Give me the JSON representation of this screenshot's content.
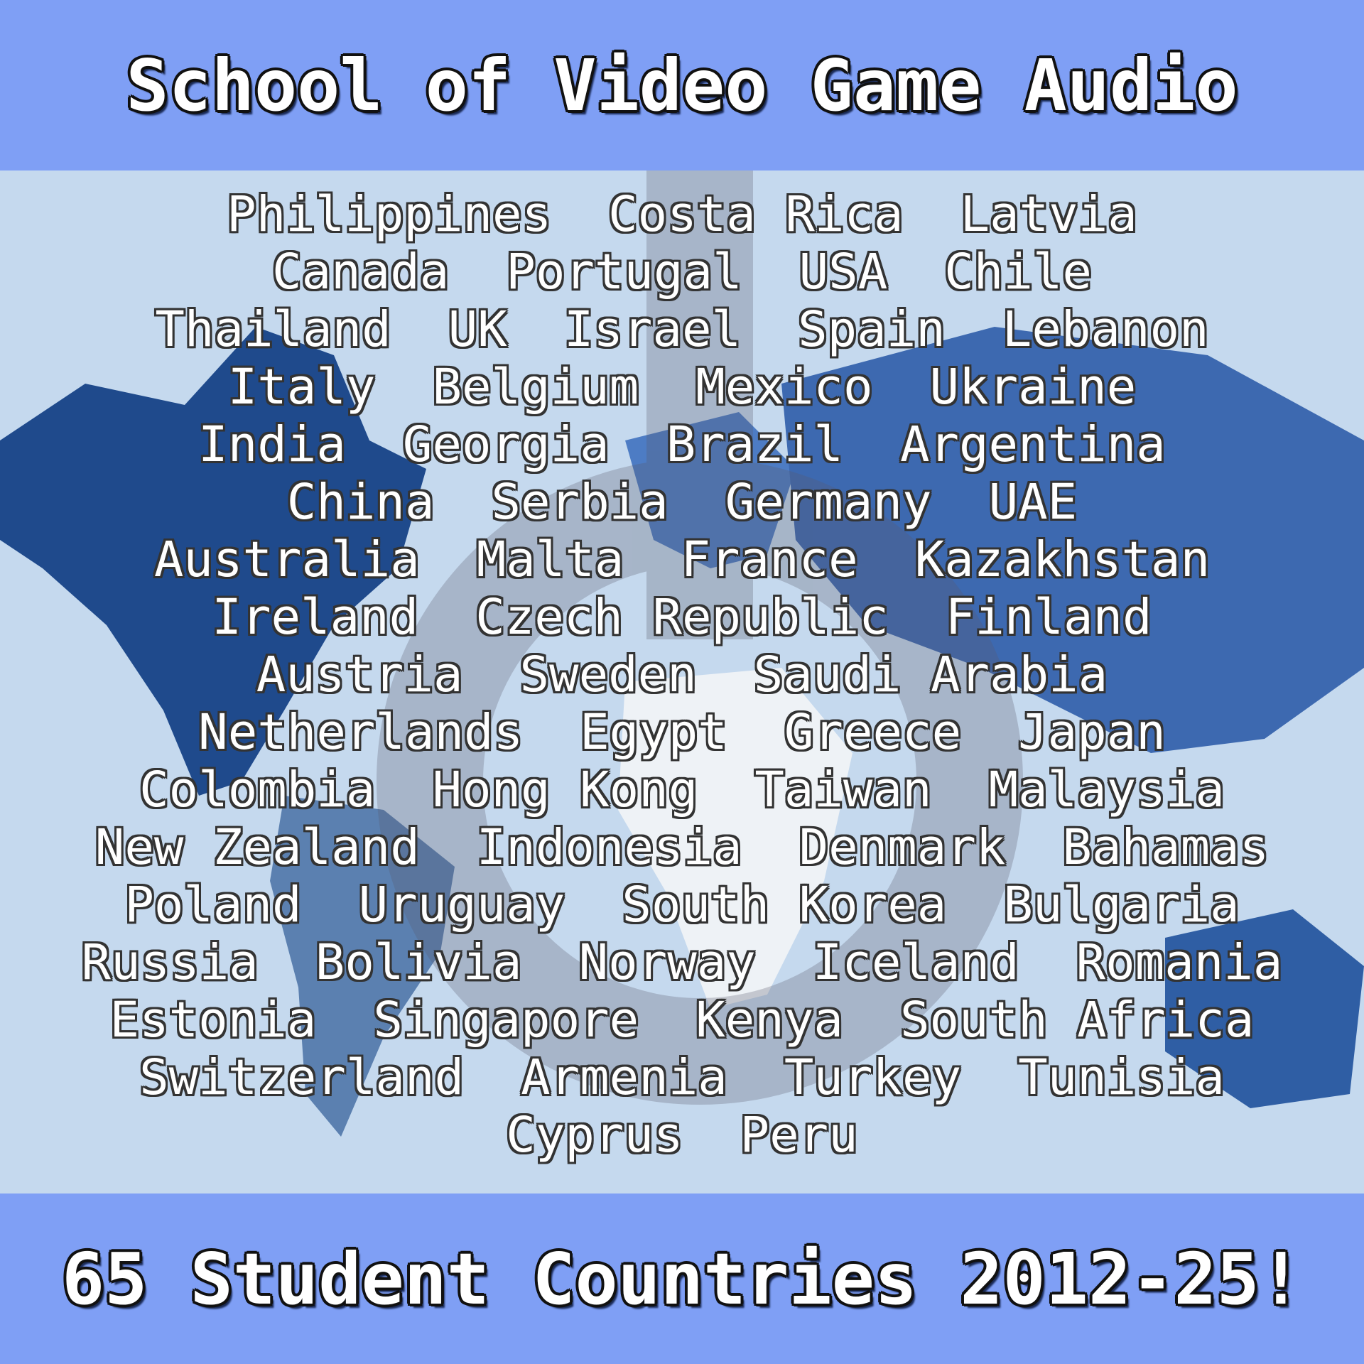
{
  "header": {
    "title": "School of Video Game Audio"
  },
  "footer": {
    "tagline": "65 Student Countries 2012-25!"
  },
  "colors": {
    "band": "#7f9ff5",
    "map_background": "#c5d9ee",
    "map_land_dark": "#1f4a8c",
    "map_land_mid": "#4d7cc4",
    "map_land_light": "#eef2f6"
  },
  "countries": [
    [
      "Philippines",
      "Costa Rica",
      "Latvia"
    ],
    [
      "Canada",
      "Portugal",
      "USA",
      "Chile"
    ],
    [
      "Thailand",
      "UK",
      "Israel",
      "Spain",
      "Lebanon"
    ],
    [
      "Italy",
      "Belgium",
      "Mexico",
      "Ukraine"
    ],
    [
      "India",
      "Georgia",
      "Brazil",
      "Argentina"
    ],
    [
      "China",
      "Serbia",
      "Germany",
      "UAE"
    ],
    [
      "Australia",
      "Malta",
      "France",
      "Kazakhstan"
    ],
    [
      "Ireland",
      "Czech Republic",
      "Finland"
    ],
    [
      "Austria",
      "Sweden",
      "Saudi Arabia"
    ],
    [
      "Netherlands",
      "Egypt",
      "Greece",
      "Japan"
    ],
    [
      "Colombia",
      "Hong Kong",
      "Taiwan",
      "Malaysia"
    ],
    [
      "New Zealand",
      "Indonesia",
      "Denmark",
      "Bahamas"
    ],
    [
      "Poland",
      "Uruguay",
      "South Korea",
      "Bulgaria"
    ],
    [
      "Russia",
      "Bolivia",
      "Norway",
      "Iceland",
      "Romania"
    ],
    [
      "Estonia",
      "Singapore",
      "Kenya",
      "South Africa"
    ],
    [
      "Switzerland",
      "Armenia",
      "Turkey",
      "Tunisia"
    ],
    [
      "Cyprus",
      "Peru"
    ]
  ]
}
